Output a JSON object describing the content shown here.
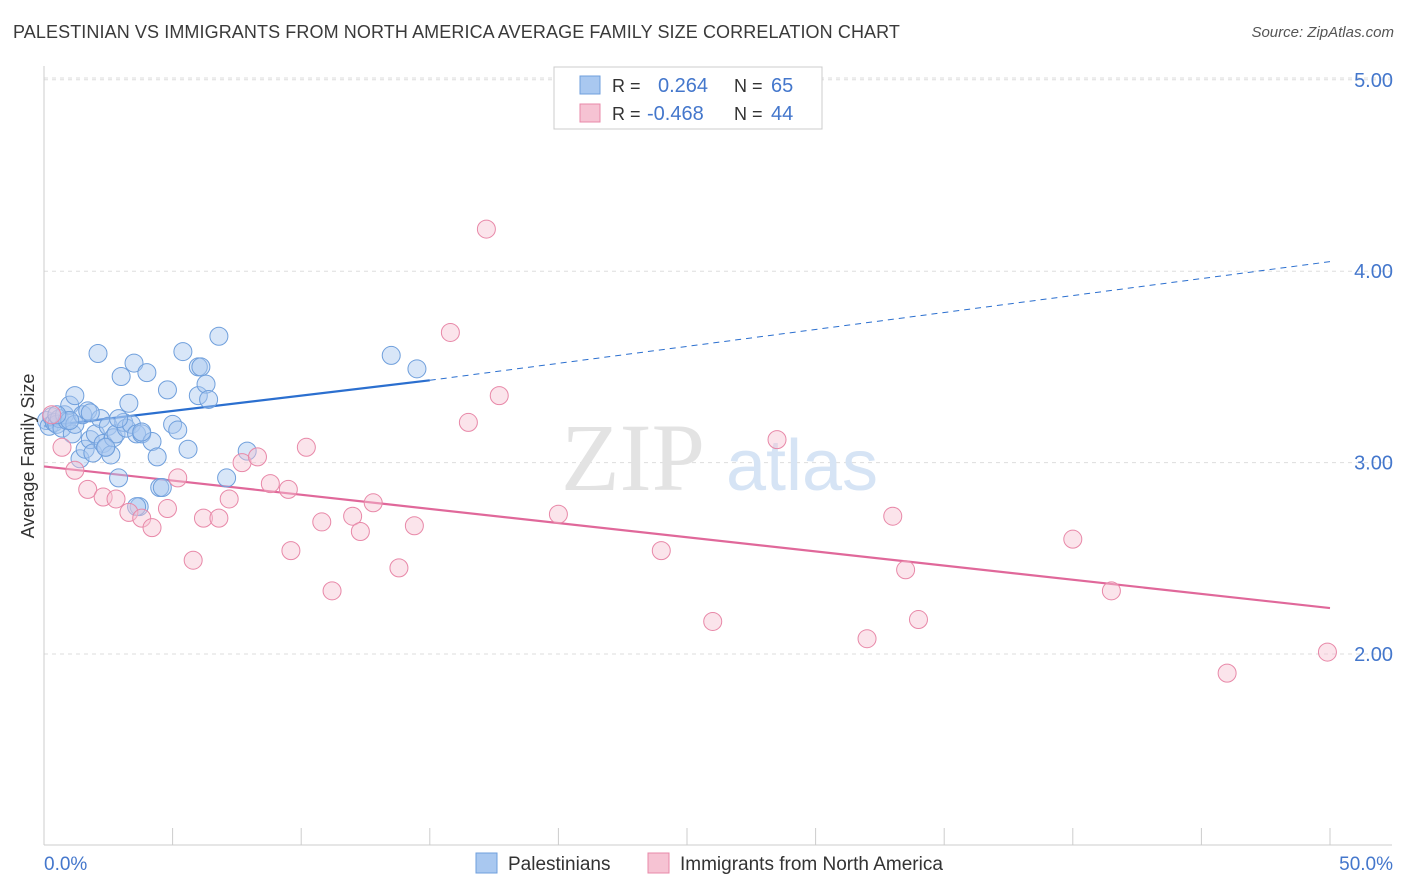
{
  "title": "PALESTINIAN VS IMMIGRANTS FROM NORTH AMERICA AVERAGE FAMILY SIZE CORRELATION CHART",
  "source": "Source: ZipAtlas.com",
  "watermark": {
    "zip": "ZIP",
    "atlas": "atlas"
  },
  "colors": {
    "blue_fill": "#a9c8f0",
    "blue_stroke": "#6f9fdc",
    "blue_line": "#2b6fcf",
    "pink_fill": "#f6c3d3",
    "pink_stroke": "#e888a8",
    "pink_line": "#e0689a",
    "axis_text": "#4477cc",
    "grid": "#dddddd"
  },
  "legend_top": [
    {
      "r_label": "R = ",
      "r_value": "0.264",
      "n_label": "N = ",
      "n_value": "65",
      "color": "blue"
    },
    {
      "r_label": "R = ",
      "r_value": "-0.468",
      "n_label": "N = ",
      "n_value": "44",
      "color": "pink"
    }
  ],
  "legend_bottom": [
    {
      "label": "Palestinians",
      "color": "blue"
    },
    {
      "label": "Immigrants from North America",
      "color": "pink"
    }
  ],
  "chart_data": {
    "type": "scatter",
    "title": "PALESTINIAN VS IMMIGRANTS FROM NORTH AMERICA AVERAGE FAMILY SIZE CORRELATION CHART",
    "xlabel": "",
    "ylabel": "Average Family Size",
    "xlim": [
      0,
      50
    ],
    "ylim": [
      1.0,
      5.2
    ],
    "x_tick_labels": [
      "0.0%",
      "50.0%"
    ],
    "y_ticks": [
      2.0,
      3.0,
      4.0,
      5.0
    ],
    "y_tick_labels": [
      "2.00",
      "3.00",
      "4.00",
      "5.00"
    ],
    "grid": true,
    "legend_position": "top-center",
    "series": [
      {
        "name": "Palestinians",
        "color": "blue",
        "trend": {
          "x0": 0,
          "y0": 3.19,
          "x1": 15,
          "y1": 3.43,
          "dashed_to_x": 50,
          "dashed_to_y": 4.05
        },
        "points": [
          [
            0.1,
            3.22
          ],
          [
            0.2,
            3.19
          ],
          [
            0.3,
            3.24
          ],
          [
            0.4,
            3.21
          ],
          [
            0.5,
            3.2
          ],
          [
            0.6,
            3.23
          ],
          [
            0.7,
            3.18
          ],
          [
            0.8,
            3.25
          ],
          [
            0.9,
            3.22
          ],
          [
            1.0,
            3.3
          ],
          [
            1.1,
            3.15
          ],
          [
            1.2,
            3.2
          ],
          [
            1.2,
            3.35
          ],
          [
            1.4,
            3.02
          ],
          [
            1.5,
            3.25
          ],
          [
            1.6,
            3.07
          ],
          [
            1.7,
            3.27
          ],
          [
            1.8,
            3.12
          ],
          [
            1.9,
            3.05
          ],
          [
            2.0,
            3.15
          ],
          [
            2.1,
            3.57
          ],
          [
            2.2,
            3.23
          ],
          [
            2.3,
            3.1
          ],
          [
            2.4,
            3.08
          ],
          [
            2.5,
            3.19
          ],
          [
            2.6,
            3.04
          ],
          [
            2.7,
            3.13
          ],
          [
            2.8,
            3.15
          ],
          [
            2.9,
            2.92
          ],
          [
            3.0,
            3.45
          ],
          [
            3.1,
            3.21
          ],
          [
            3.2,
            3.18
          ],
          [
            3.3,
            3.31
          ],
          [
            3.4,
            3.2
          ],
          [
            3.5,
            3.52
          ],
          [
            3.6,
            3.15
          ],
          [
            3.7,
            2.77
          ],
          [
            3.8,
            3.15
          ],
          [
            4.0,
            3.47
          ],
          [
            4.2,
            3.11
          ],
          [
            4.4,
            3.03
          ],
          [
            4.5,
            2.87
          ],
          [
            4.6,
            2.87
          ],
          [
            4.8,
            3.38
          ],
          [
            5.0,
            3.2
          ],
          [
            5.2,
            3.17
          ],
          [
            5.4,
            3.58
          ],
          [
            5.6,
            3.07
          ],
          [
            6.0,
            3.35
          ],
          [
            6.0,
            3.5
          ],
          [
            6.1,
            3.5
          ],
          [
            6.3,
            3.41
          ],
          [
            6.4,
            3.33
          ],
          [
            6.8,
            3.66
          ],
          [
            7.1,
            2.92
          ],
          [
            7.9,
            3.06
          ],
          [
            13.5,
            3.56
          ],
          [
            14.5,
            3.49
          ],
          [
            3.6,
            2.77
          ],
          [
            2.4,
            3.08
          ],
          [
            1.0,
            3.22
          ],
          [
            0.5,
            3.25
          ],
          [
            2.9,
            3.23
          ],
          [
            1.8,
            3.26
          ],
          [
            3.8,
            3.16
          ]
        ]
      },
      {
        "name": "Immigrants from North America",
        "color": "pink",
        "trend": {
          "x0": 0,
          "y0": 2.98,
          "x1": 50,
          "y1": 2.24
        },
        "points": [
          [
            0.3,
            3.25
          ],
          [
            0.7,
            3.08
          ],
          [
            1.2,
            2.96
          ],
          [
            1.7,
            2.86
          ],
          [
            2.3,
            2.82
          ],
          [
            2.8,
            2.81
          ],
          [
            3.3,
            2.74
          ],
          [
            3.8,
            2.71
          ],
          [
            4.2,
            2.66
          ],
          [
            4.8,
            2.76
          ],
          [
            5.2,
            2.92
          ],
          [
            5.8,
            2.49
          ],
          [
            6.2,
            2.71
          ],
          [
            6.8,
            2.71
          ],
          [
            7.2,
            2.81
          ],
          [
            7.7,
            3.0
          ],
          [
            8.3,
            3.03
          ],
          [
            8.8,
            2.89
          ],
          [
            9.5,
            2.86
          ],
          [
            9.6,
            2.54
          ],
          [
            10.2,
            3.08
          ],
          [
            10.8,
            2.69
          ],
          [
            11.2,
            2.33
          ],
          [
            12.0,
            2.72
          ],
          [
            12.3,
            2.64
          ],
          [
            12.8,
            2.79
          ],
          [
            13.8,
            2.45
          ],
          [
            14.4,
            2.67
          ],
          [
            15.8,
            3.68
          ],
          [
            16.5,
            3.21
          ],
          [
            17.2,
            4.22
          ],
          [
            17.7,
            3.35
          ],
          [
            20.0,
            2.73
          ],
          [
            24.0,
            2.54
          ],
          [
            26.0,
            2.17
          ],
          [
            28.5,
            3.12
          ],
          [
            32.0,
            2.08
          ],
          [
            33.0,
            2.72
          ],
          [
            33.5,
            2.44
          ],
          [
            34.0,
            2.18
          ],
          [
            40.0,
            2.6
          ],
          [
            41.5,
            2.33
          ],
          [
            46.0,
            1.9
          ],
          [
            49.9,
            2.01
          ]
        ]
      }
    ]
  }
}
